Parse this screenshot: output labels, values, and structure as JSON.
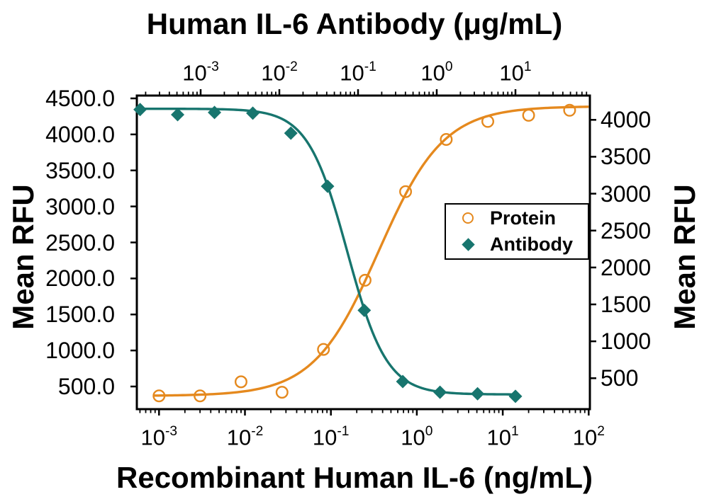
{
  "chart_data": {
    "type": "line",
    "description": "Dose-response / neutralization curves, scatter points with 4-parameter logistic fit lines",
    "axes": {
      "top": {
        "title": "Human IL-6 Antibody (μg/mL)",
        "scale": "log",
        "unit": "ug/mL",
        "tick_exponents": [
          -3,
          -2,
          -1,
          0,
          1
        ],
        "range": [
          0.00015,
          90
        ]
      },
      "bottom": {
        "title": "Recombinant Human IL-6 (ng/mL)",
        "scale": "log",
        "unit": "ng/mL",
        "tick_exponents": [
          -3,
          -2,
          -1,
          0,
          1,
          2
        ],
        "range": [
          0.00055,
          103
        ]
      },
      "left": {
        "title": "Mean RFU",
        "tick_labels": [
          "4500.0",
          "4000.0",
          "3500.0",
          "3000.0",
          "2500.0",
          "2000.0",
          "1500.0",
          "1000.0",
          "500.0"
        ],
        "tick_values": [
          4500,
          4000,
          3500,
          3000,
          2500,
          2000,
          1500,
          1000,
          500
        ],
        "range": [
          150,
          4540
        ],
        "grid": false
      },
      "right": {
        "title": "Mean RFU",
        "tick_labels": [
          "4000",
          "3500",
          "3000",
          "2500",
          "2000",
          "1500",
          "1000",
          "500"
        ],
        "tick_values": [
          4000,
          3500,
          3000,
          2500,
          2000,
          1500,
          1000,
          500
        ],
        "range": [
          80,
          4330
        ],
        "grid": false
      }
    },
    "series": [
      {
        "name": "Protein",
        "marker": "open-circle",
        "color": "#E5891E",
        "x_axis": "bottom",
        "y_axis": "left",
        "x": [
          0.001,
          0.003,
          0.009,
          0.027,
          0.082,
          0.25,
          0.74,
          2.2,
          6.7,
          20,
          60
        ],
        "y": [
          370,
          370,
          565,
          420,
          1015,
          1975,
          3205,
          3930,
          4180,
          4265,
          4335
        ],
        "fit": {
          "direction": "increasing",
          "min": 370,
          "max": 4390,
          "ec50": 0.36,
          "hill": 1.15
        },
        "curve_range": [
          0.00085,
          100
        ]
      },
      {
        "name": "Antibody",
        "marker": "filled-diamond",
        "color": "#17756E",
        "x_axis": "top",
        "y_axis": "right",
        "x": [
          0.00017,
          0.00051,
          0.0015,
          0.0046,
          0.014,
          0.041,
          0.12,
          0.37,
          1.1,
          3.3,
          10
        ],
        "y": [
          4140,
          4070,
          4100,
          4090,
          3820,
          3100,
          1420,
          455,
          310,
          290,
          255
        ],
        "fit": {
          "direction": "decreasing",
          "min": 280,
          "max": 4150,
          "ec50": 0.073,
          "hill": 1.73
        },
        "curve_range": [
          0.00017,
          10
        ]
      }
    ],
    "legend": {
      "position": "middle-right",
      "items": [
        {
          "label": "Protein",
          "marker": "open-circle"
        },
        {
          "label": "Antibody",
          "marker": "filled-diamond"
        }
      ]
    }
  }
}
